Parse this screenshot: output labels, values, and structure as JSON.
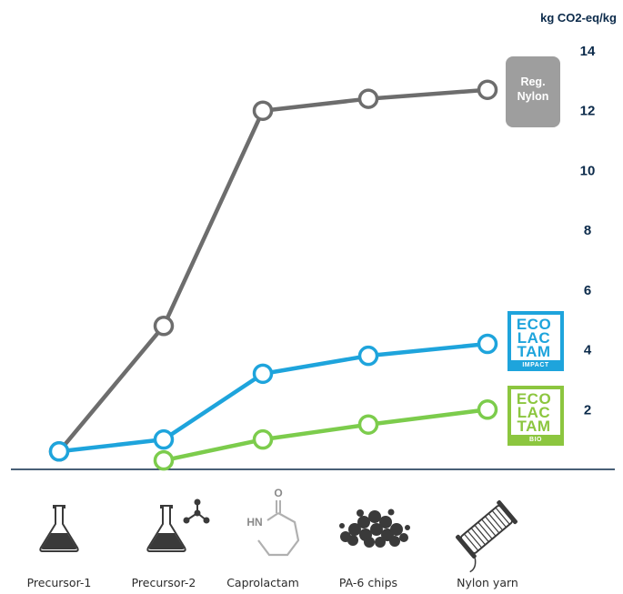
{
  "chart_data": {
    "type": "line",
    "ylabel": "kg CO2-eq/kg",
    "y_ticks": [
      "14",
      "12",
      "10",
      "8",
      "6",
      "4",
      "2"
    ],
    "y_tick_values": [
      14,
      12,
      10,
      8,
      6,
      4,
      2
    ],
    "ylim": [
      0,
      14
    ],
    "grid": false,
    "categories": [
      "Precursor-1",
      "Precursor-2",
      "Caprolactam",
      "PA-6 chips",
      "Nylon yarn"
    ],
    "series": [
      {
        "name": "Reg. Nylon",
        "color": "#6d6d6d",
        "values": [
          0.6,
          4.8,
          12.0,
          12.4,
          12.7
        ]
      },
      {
        "name": "",
        "color": "#1ea4dc",
        "values": [
          0.6,
          1.0,
          3.2,
          3.8,
          4.2
        ]
      },
      {
        "name": "",
        "color": "#7ccc4c",
        "values": [
          null,
          0.3,
          1.0,
          1.5,
          2.0
        ]
      }
    ],
    "badges": {
      "reg_nylon": {
        "line1": "Reg.",
        "line2": "Nylon",
        "color": "#9e9e9e"
      },
      "impact": {
        "line1": "ECO",
        "line2": "LAC",
        "line3": "TAM",
        "sub": "IMPACT",
        "color": "#1ea4dc"
      },
      "bio": {
        "line1": "ECO",
        "line2": "LAC",
        "line3": "TAM",
        "sub": "BIO",
        "color": "#8cc63f"
      }
    },
    "icons": [
      "flask-icon",
      "flask-molecule-icon",
      "caprolactam-molecule-icon",
      "chips-pile-icon",
      "yarn-spool-icon"
    ],
    "caprolactam_atoms": {
      "o": "O",
      "hn": "HN"
    }
  }
}
